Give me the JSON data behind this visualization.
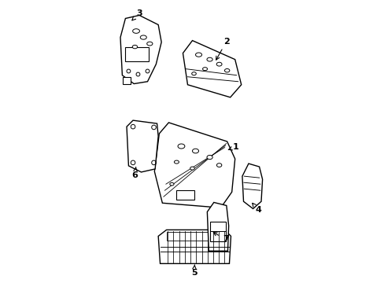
{
  "background_color": "#ffffff",
  "line_color": "#000000",
  "line_width": 1.0
}
